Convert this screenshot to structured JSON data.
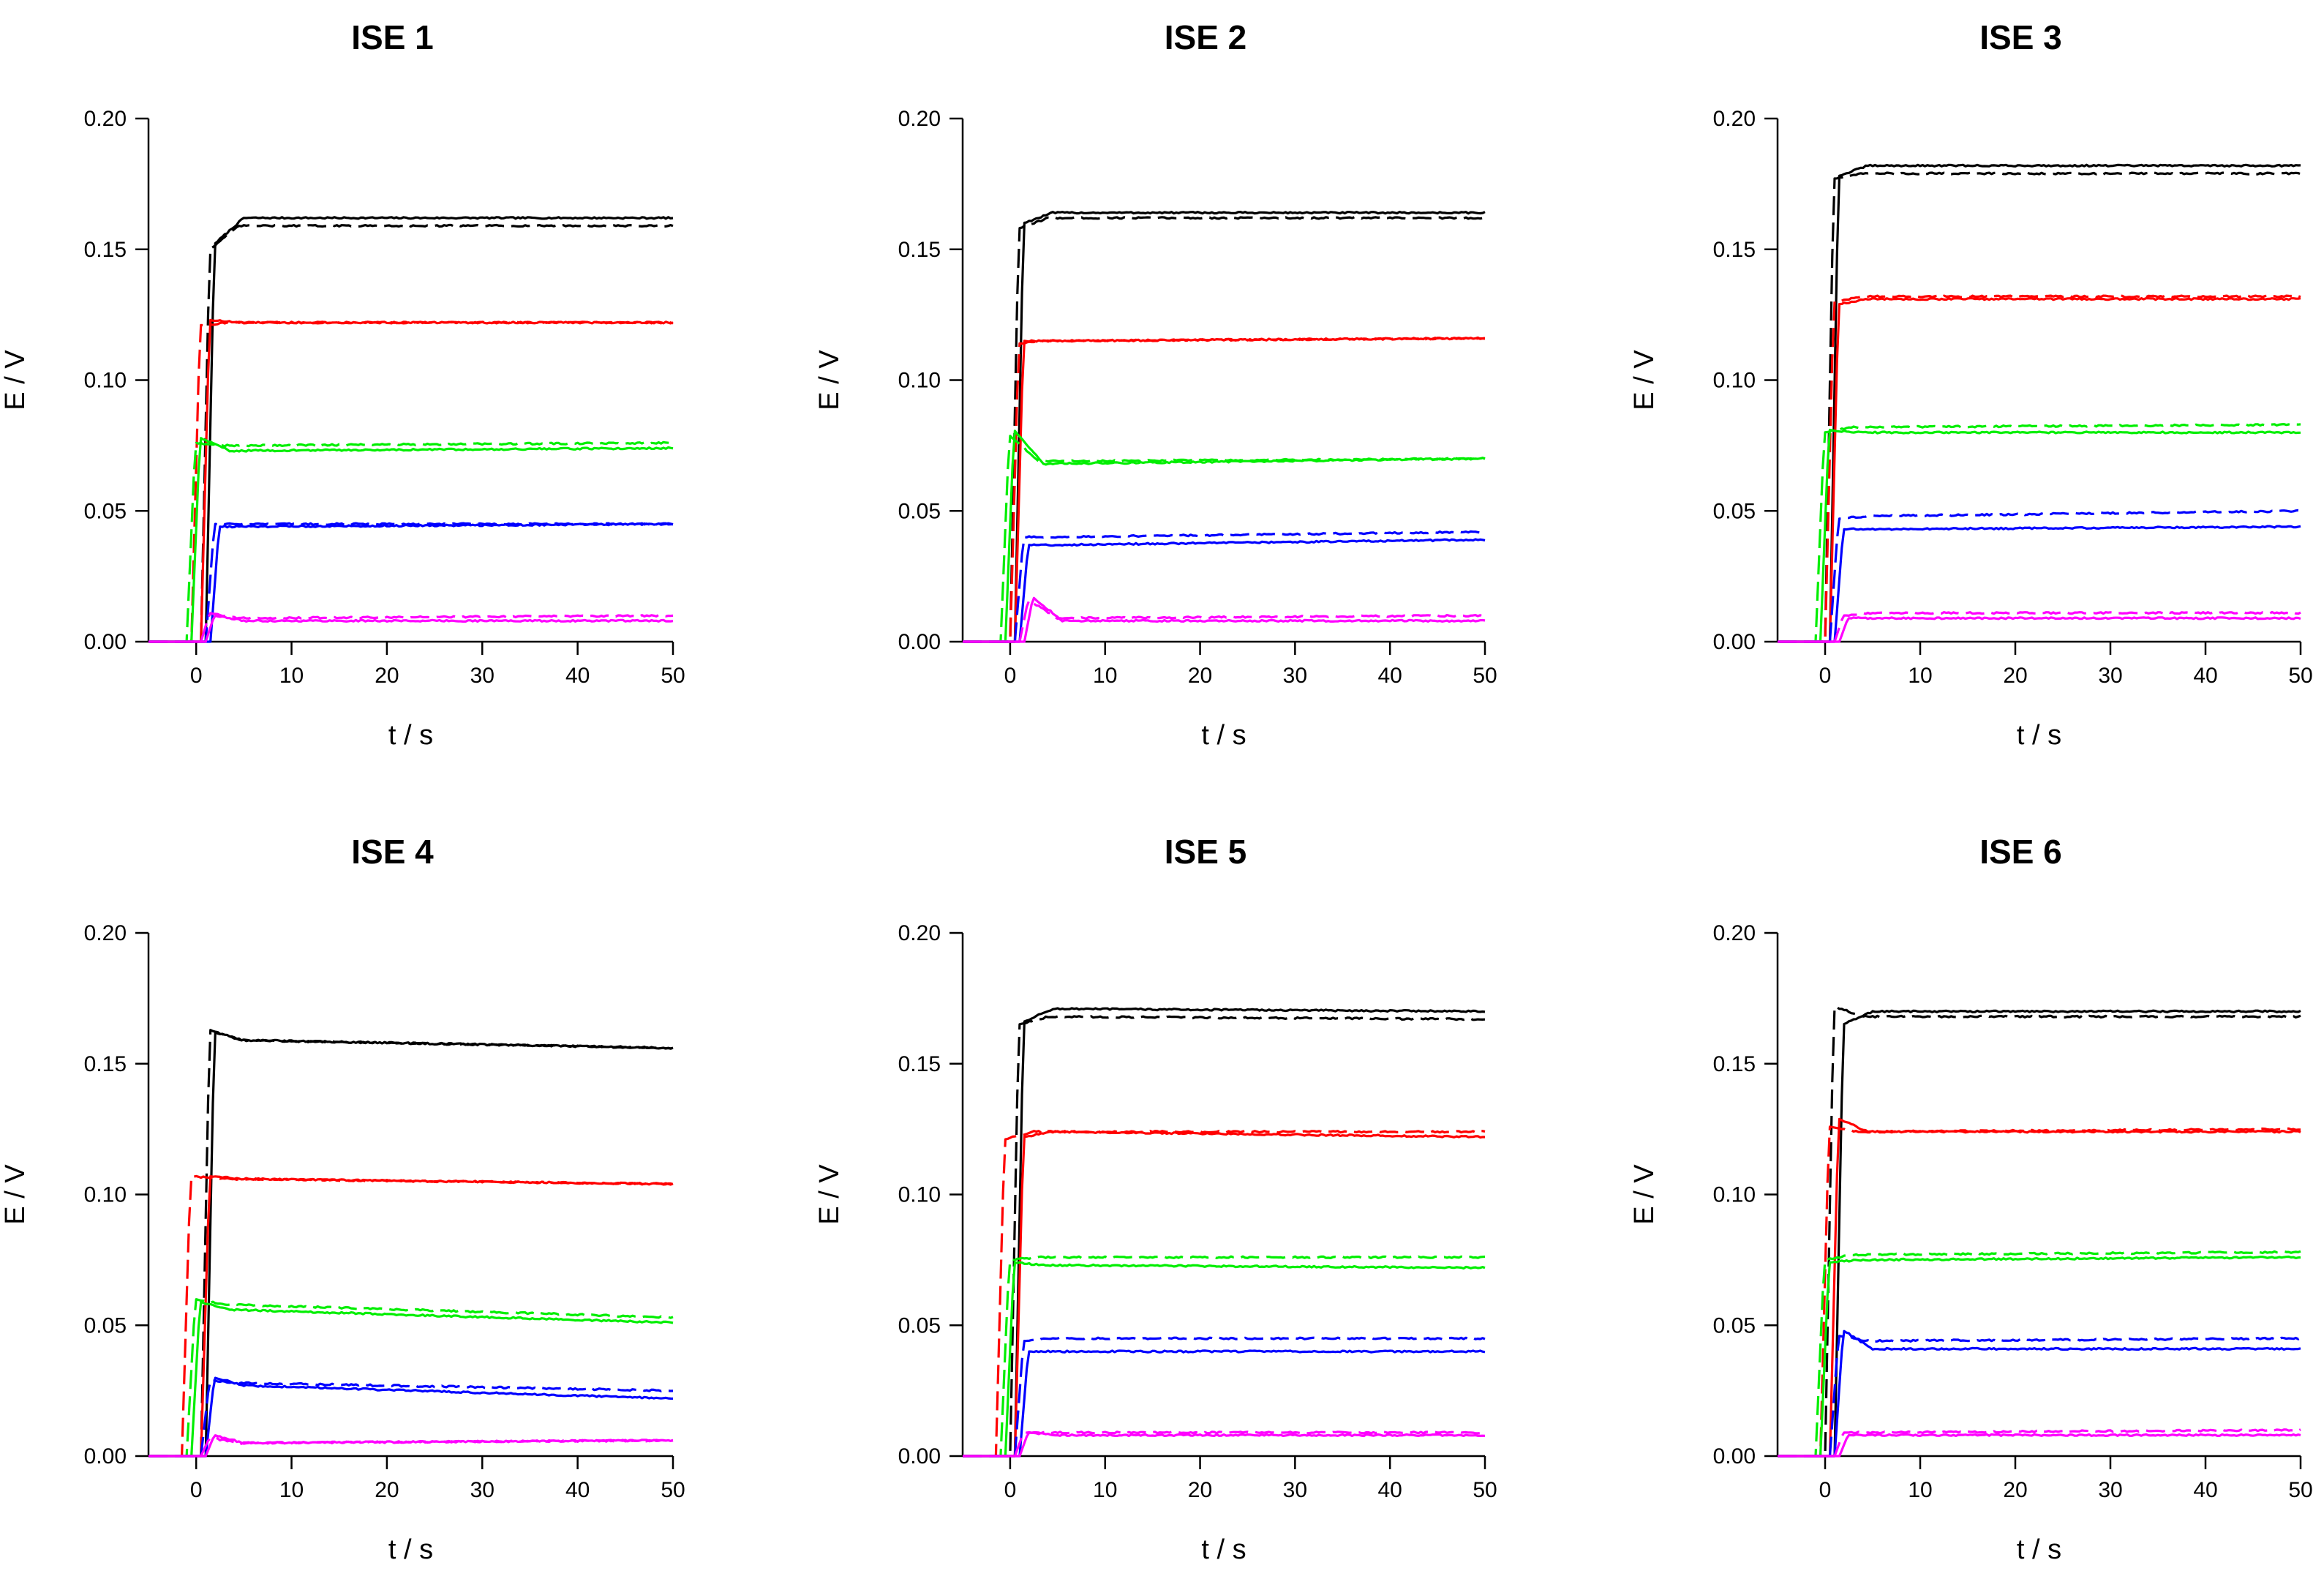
{
  "colors": {
    "black": "#000000",
    "red": "#ff0000",
    "green": "#00ee00",
    "blue": "#0000ff",
    "magenta": "#ff00ff"
  },
  "chart_data": [
    {
      "type": "line",
      "title": "ISE 1",
      "xlabel": "t / s",
      "ylabel": "E / V",
      "xlim": [
        -5,
        50
      ],
      "ylim": [
        0,
        0.2
      ],
      "xticks": [
        "0",
        "10",
        "20",
        "30",
        "40",
        "50"
      ],
      "yticks": [
        "0.00",
        "0.05",
        "0.10",
        "0.15",
        "0.20"
      ],
      "series": [
        {
          "name": "black solid",
          "color": "black",
          "dash": "solid",
          "onset": 1.0,
          "peak": 0.152,
          "plateau": 0.162,
          "end": 0.162
        },
        {
          "name": "black dashed",
          "color": "black",
          "dash": "dashed",
          "onset": 0.5,
          "peak": 0.15,
          "plateau": 0.159,
          "end": 0.159
        },
        {
          "name": "red solid",
          "color": "red",
          "dash": "solid",
          "onset": 0.5,
          "peak": 0.123,
          "plateau": 0.122,
          "end": 0.122
        },
        {
          "name": "red dashed",
          "color": "red",
          "dash": "dashed",
          "onset": -0.5,
          "peak": 0.121,
          "plateau": 0.122,
          "end": 0.122
        },
        {
          "name": "green solid",
          "color": "green",
          "dash": "solid",
          "onset": -0.5,
          "peak": 0.078,
          "plateau": 0.073,
          "end": 0.074
        },
        {
          "name": "green dashed",
          "color": "green",
          "dash": "dashed",
          "onset": -1.0,
          "peak": 0.076,
          "plateau": 0.075,
          "end": 0.076
        },
        {
          "name": "blue solid",
          "color": "blue",
          "dash": "solid",
          "onset": 1.5,
          "peak": 0.044,
          "plateau": 0.044,
          "end": 0.045
        },
        {
          "name": "blue dashed",
          "color": "blue",
          "dash": "dashed",
          "onset": 1.0,
          "peak": 0.045,
          "plateau": 0.045,
          "end": 0.045
        },
        {
          "name": "magenta solid",
          "color": "magenta",
          "dash": "solid",
          "onset": 1.0,
          "peak": 0.01,
          "plateau": 0.008,
          "end": 0.008
        },
        {
          "name": "magenta dashed",
          "color": "magenta",
          "dash": "dashed",
          "onset": 0.5,
          "peak": 0.011,
          "plateau": 0.009,
          "end": 0.01
        }
      ]
    },
    {
      "type": "line",
      "title": "ISE 2",
      "xlabel": "t / s",
      "ylabel": "E / V",
      "xlim": [
        -5,
        50
      ],
      "ylim": [
        0,
        0.2
      ],
      "xticks": [
        "0",
        "10",
        "20",
        "30",
        "40",
        "50"
      ],
      "yticks": [
        "0.00",
        "0.05",
        "0.10",
        "0.15",
        "0.20"
      ],
      "series": [
        {
          "name": "black solid",
          "color": "black",
          "dash": "solid",
          "onset": 0.5,
          "peak": 0.16,
          "plateau": 0.164,
          "end": 0.164
        },
        {
          "name": "black dashed",
          "color": "black",
          "dash": "dashed",
          "onset": 0.0,
          "peak": 0.158,
          "plateau": 0.162,
          "end": 0.162
        },
        {
          "name": "red solid",
          "color": "red",
          "dash": "solid",
          "onset": 0.5,
          "peak": 0.115,
          "plateau": 0.115,
          "end": 0.116
        },
        {
          "name": "red dashed",
          "color": "red",
          "dash": "dashed",
          "onset": 0.0,
          "peak": 0.114,
          "plateau": 0.115,
          "end": 0.116
        },
        {
          "name": "green solid",
          "color": "green",
          "dash": "solid",
          "onset": -0.5,
          "peak": 0.081,
          "plateau": 0.068,
          "end": 0.07
        },
        {
          "name": "green dashed",
          "color": "green",
          "dash": "dashed",
          "onset": -1.0,
          "peak": 0.079,
          "plateau": 0.069,
          "end": 0.07
        },
        {
          "name": "blue solid",
          "color": "blue",
          "dash": "solid",
          "onset": 1.0,
          "peak": 0.037,
          "plateau": 0.037,
          "end": 0.039
        },
        {
          "name": "blue dashed",
          "color": "blue",
          "dash": "dashed",
          "onset": 0.5,
          "peak": 0.04,
          "plateau": 0.04,
          "end": 0.042
        },
        {
          "name": "magenta solid",
          "color": "magenta",
          "dash": "solid",
          "onset": 1.5,
          "peak": 0.017,
          "plateau": 0.008,
          "end": 0.008
        },
        {
          "name": "magenta dashed",
          "color": "magenta",
          "dash": "dashed",
          "onset": 1.0,
          "peak": 0.016,
          "plateau": 0.009,
          "end": 0.01
        }
      ]
    },
    {
      "type": "line",
      "title": "ISE 3",
      "xlabel": "t / s",
      "ylabel": "E / V",
      "xlim": [
        -5,
        50
      ],
      "ylim": [
        0,
        0.2
      ],
      "xticks": [
        "0",
        "10",
        "20",
        "30",
        "40",
        "50"
      ],
      "yticks": [
        "0.00",
        "0.05",
        "0.10",
        "0.15",
        "0.20"
      ],
      "series": [
        {
          "name": "black solid",
          "color": "black",
          "dash": "solid",
          "onset": 0.5,
          "peak": 0.178,
          "plateau": 0.182,
          "end": 0.182
        },
        {
          "name": "black dashed",
          "color": "black",
          "dash": "dashed",
          "onset": 0.0,
          "peak": 0.177,
          "plateau": 0.179,
          "end": 0.179
        },
        {
          "name": "red solid",
          "color": "red",
          "dash": "solid",
          "onset": 0.5,
          "peak": 0.129,
          "plateau": 0.131,
          "end": 0.131
        },
        {
          "name": "red dashed",
          "color": "red",
          "dash": "dashed",
          "onset": 0.0,
          "peak": 0.13,
          "plateau": 0.132,
          "end": 0.132
        },
        {
          "name": "green solid",
          "color": "green",
          "dash": "solid",
          "onset": -0.5,
          "peak": 0.081,
          "plateau": 0.08,
          "end": 0.08
        },
        {
          "name": "green dashed",
          "color": "green",
          "dash": "dashed",
          "onset": -1.0,
          "peak": 0.08,
          "plateau": 0.082,
          "end": 0.083
        },
        {
          "name": "blue solid",
          "color": "blue",
          "dash": "solid",
          "onset": 1.0,
          "peak": 0.043,
          "plateau": 0.043,
          "end": 0.044
        },
        {
          "name": "blue dashed",
          "color": "blue",
          "dash": "dashed",
          "onset": 0.5,
          "peak": 0.047,
          "plateau": 0.048,
          "end": 0.05
        },
        {
          "name": "magenta solid",
          "color": "magenta",
          "dash": "solid",
          "onset": 1.5,
          "peak": 0.009,
          "plateau": 0.009,
          "end": 0.009
        },
        {
          "name": "magenta dashed",
          "color": "magenta",
          "dash": "dashed",
          "onset": 1.0,
          "peak": 0.01,
          "plateau": 0.011,
          "end": 0.011
        }
      ]
    },
    {
      "type": "line",
      "title": "ISE 4",
      "xlabel": "t / s",
      "ylabel": "E / V",
      "xlim": [
        -5,
        50
      ],
      "ylim": [
        0,
        0.2
      ],
      "xticks": [
        "0",
        "10",
        "20",
        "30",
        "40",
        "50"
      ],
      "yticks": [
        "0.00",
        "0.05",
        "0.10",
        "0.15",
        "0.20"
      ],
      "series": [
        {
          "name": "black solid",
          "color": "black",
          "dash": "solid",
          "onset": 1.0,
          "peak": 0.162,
          "plateau": 0.159,
          "end": 0.156
        },
        {
          "name": "black dashed",
          "color": "black",
          "dash": "dashed",
          "onset": 0.5,
          "peak": 0.163,
          "plateau": 0.159,
          "end": 0.156
        },
        {
          "name": "red solid",
          "color": "red",
          "dash": "solid",
          "onset": 0.5,
          "peak": 0.107,
          "plateau": 0.106,
          "end": 0.104
        },
        {
          "name": "red dashed",
          "color": "red",
          "dash": "dashed",
          "onset": -1.5,
          "peak": 0.107,
          "plateau": 0.106,
          "end": 0.104
        },
        {
          "name": "green solid",
          "color": "green",
          "dash": "solid",
          "onset": -0.5,
          "peak": 0.059,
          "plateau": 0.056,
          "end": 0.051
        },
        {
          "name": "green dashed",
          "color": "green",
          "dash": "dashed",
          "onset": -1.0,
          "peak": 0.06,
          "plateau": 0.058,
          "end": 0.053
        },
        {
          "name": "blue solid",
          "color": "blue",
          "dash": "solid",
          "onset": 1.0,
          "peak": 0.03,
          "plateau": 0.027,
          "end": 0.022
        },
        {
          "name": "blue dashed",
          "color": "blue",
          "dash": "dashed",
          "onset": 0.5,
          "peak": 0.029,
          "plateau": 0.028,
          "end": 0.025
        },
        {
          "name": "magenta solid",
          "color": "magenta",
          "dash": "solid",
          "onset": 1.0,
          "peak": 0.008,
          "plateau": 0.005,
          "end": 0.006
        },
        {
          "name": "magenta dashed",
          "color": "magenta",
          "dash": "dashed",
          "onset": 0.5,
          "peak": 0.007,
          "plateau": 0.005,
          "end": 0.006
        }
      ]
    },
    {
      "type": "line",
      "title": "ISE 5",
      "xlabel": "t / s",
      "ylabel": "E / V",
      "xlim": [
        -5,
        50
      ],
      "ylim": [
        0,
        0.2
      ],
      "xticks": [
        "0",
        "10",
        "20",
        "30",
        "40",
        "50"
      ],
      "yticks": [
        "0.00",
        "0.05",
        "0.10",
        "0.15",
        "0.20"
      ],
      "series": [
        {
          "name": "black solid",
          "color": "black",
          "dash": "solid",
          "onset": 0.5,
          "peak": 0.166,
          "plateau": 0.171,
          "end": 0.17
        },
        {
          "name": "black dashed",
          "color": "black",
          "dash": "dashed",
          "onset": 0.0,
          "peak": 0.165,
          "plateau": 0.168,
          "end": 0.167
        },
        {
          "name": "red solid",
          "color": "red",
          "dash": "solid",
          "onset": 0.5,
          "peak": 0.122,
          "plateau": 0.124,
          "end": 0.122
        },
        {
          "name": "red dashed",
          "color": "red",
          "dash": "dashed",
          "onset": -1.5,
          "peak": 0.121,
          "plateau": 0.124,
          "end": 0.124
        },
        {
          "name": "green solid",
          "color": "green",
          "dash": "solid",
          "onset": -0.5,
          "peak": 0.074,
          "plateau": 0.073,
          "end": 0.072
        },
        {
          "name": "green dashed",
          "color": "green",
          "dash": "dashed",
          "onset": -1.0,
          "peak": 0.075,
          "plateau": 0.076,
          "end": 0.076
        },
        {
          "name": "blue solid",
          "color": "blue",
          "dash": "solid",
          "onset": 1.0,
          "peak": 0.04,
          "plateau": 0.04,
          "end": 0.04
        },
        {
          "name": "blue dashed",
          "color": "blue",
          "dash": "dashed",
          "onset": 0.5,
          "peak": 0.044,
          "plateau": 0.045,
          "end": 0.045
        },
        {
          "name": "magenta solid",
          "color": "magenta",
          "dash": "solid",
          "onset": 1.0,
          "peak": 0.009,
          "plateau": 0.008,
          "end": 0.008
        },
        {
          "name": "magenta dashed",
          "color": "magenta",
          "dash": "dashed",
          "onset": 0.5,
          "peak": 0.009,
          "plateau": 0.009,
          "end": 0.009
        }
      ]
    },
    {
      "type": "line",
      "title": "ISE 6",
      "xlabel": "t / s",
      "ylabel": "E / V",
      "xlim": [
        -5,
        50
      ],
      "ylim": [
        0,
        0.2
      ],
      "xticks": [
        "0",
        "10",
        "20",
        "30",
        "40",
        "50"
      ],
      "yticks": [
        "0.00",
        "0.05",
        "0.10",
        "0.15",
        "0.20"
      ],
      "series": [
        {
          "name": "black solid",
          "color": "black",
          "dash": "solid",
          "onset": 1.0,
          "peak": 0.165,
          "plateau": 0.17,
          "end": 0.17
        },
        {
          "name": "black dashed",
          "color": "black",
          "dash": "dashed",
          "onset": 0.0,
          "peak": 0.172,
          "plateau": 0.168,
          "end": 0.168
        },
        {
          "name": "red solid",
          "color": "red",
          "dash": "solid",
          "onset": 0.5,
          "peak": 0.129,
          "plateau": 0.124,
          "end": 0.124
        },
        {
          "name": "red dashed",
          "color": "red",
          "dash": "dashed",
          "onset": -0.5,
          "peak": 0.126,
          "plateau": 0.124,
          "end": 0.125
        },
        {
          "name": "green solid",
          "color": "green",
          "dash": "solid",
          "onset": -0.5,
          "peak": 0.074,
          "plateau": 0.075,
          "end": 0.076
        },
        {
          "name": "green dashed",
          "color": "green",
          "dash": "dashed",
          "onset": -1.0,
          "peak": 0.075,
          "plateau": 0.077,
          "end": 0.078
        },
        {
          "name": "blue solid",
          "color": "blue",
          "dash": "solid",
          "onset": 1.0,
          "peak": 0.048,
          "plateau": 0.041,
          "end": 0.041
        },
        {
          "name": "blue dashed",
          "color": "blue",
          "dash": "dashed",
          "onset": 0.5,
          "peak": 0.046,
          "plateau": 0.044,
          "end": 0.045
        },
        {
          "name": "magenta solid",
          "color": "magenta",
          "dash": "solid",
          "onset": 1.5,
          "peak": 0.008,
          "plateau": 0.008,
          "end": 0.008
        },
        {
          "name": "magenta dashed",
          "color": "magenta",
          "dash": "dashed",
          "onset": 1.0,
          "peak": 0.009,
          "plateau": 0.009,
          "end": 0.01
        }
      ]
    }
  ]
}
